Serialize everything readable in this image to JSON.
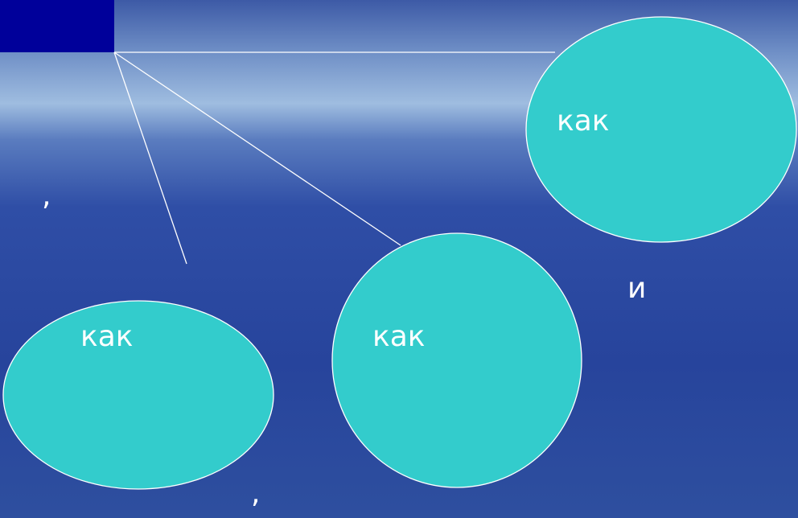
{
  "nodes": [
    {
      "label": "как"
    },
    {
      "label": "как"
    },
    {
      "label": "как"
    }
  ],
  "annotations": [
    ",",
    ",",
    "и"
  ]
}
